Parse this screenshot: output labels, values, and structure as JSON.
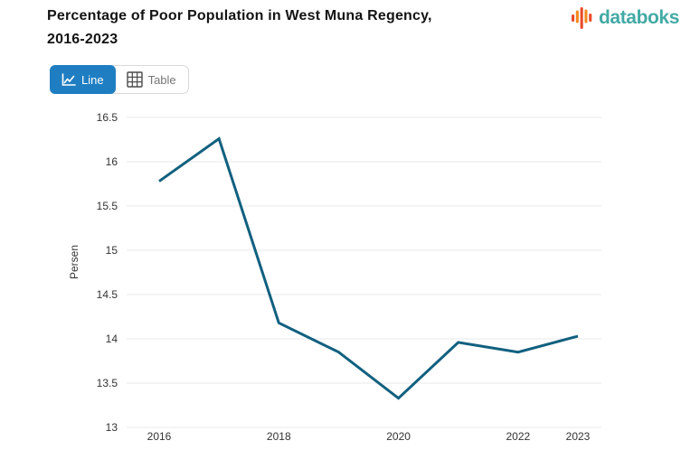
{
  "header": {
    "title_line1": "Percentage of Poor Population in West Muna Regency,",
    "title_line2": "2016-2023",
    "logo_text": "databoks"
  },
  "toolbar": {
    "line_label": "Line",
    "table_label": "Table"
  },
  "colors": {
    "line": "#11607f",
    "accent_blue": "#1f7ec2",
    "logo_teal": "#42aaa5",
    "logo_orange": "#f6891e",
    "logo_red": "#e84b2a",
    "grid": "#e9e9e9",
    "axis_text": "#333333",
    "title_text": "#141414",
    "inactive_text": "#757575",
    "button_border": "#d9d9d9"
  },
  "chart_data": {
    "type": "line",
    "title": "Percentage of Poor Population in West Muna Regency, 2016-2023",
    "x": [
      2016,
      2017,
      2018,
      2019,
      2020,
      2021,
      2022,
      2023
    ],
    "values": [
      15.78,
      16.26,
      14.18,
      13.85,
      13.33,
      13.96,
      13.85,
      14.03
    ],
    "series_name": "Persen",
    "xlabel": "",
    "ylabel": "Persen",
    "ylim": [
      13,
      16.5
    ],
    "ytick_step": 0.5,
    "xtick_labels": [
      "2016",
      "2018",
      "2020",
      "2022",
      "2023"
    ],
    "grid": "horizontal",
    "legend": "none"
  }
}
